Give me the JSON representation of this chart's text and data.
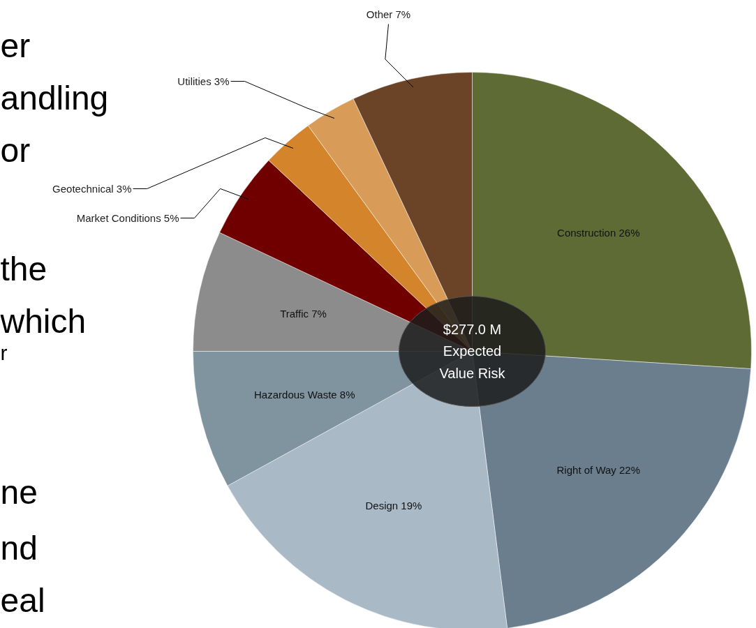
{
  "chart_data": {
    "type": "pie",
    "categories": [
      "Construction",
      "Right of Way",
      "Design",
      "Hazardous Waste",
      "Traffic",
      "Market Conditions",
      "Geotechnical",
      "Utilities",
      "Other"
    ],
    "values": [
      26,
      22,
      19,
      8,
      7,
      5,
      3,
      3,
      7
    ],
    "value_labels": [
      "26%",
      "22%",
      "19%",
      "8%",
      "7%",
      "5%",
      "3%",
      "3%",
      "7%"
    ],
    "colors": [
      "#5f6b35",
      "#6a7e8e",
      "#a9bac6",
      "#7f949f",
      "#8c8c8c",
      "#700000",
      "#d4842a",
      "#d89c58",
      "#6b4427"
    ],
    "annotations": [
      "$277.0 M\nExpected\nValue Risk",
      "er",
      "andling",
      "or",
      "the",
      "which",
      "r",
      "ne",
      "nd",
      "eal"
    ]
  }
}
